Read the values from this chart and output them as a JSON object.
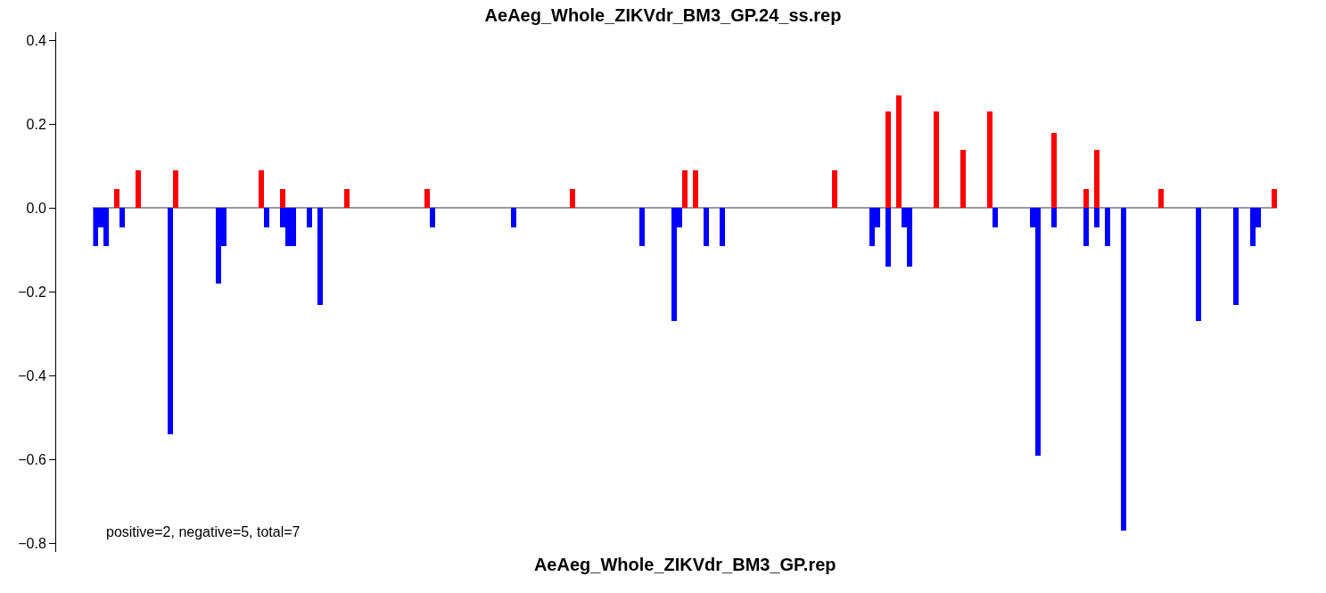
{
  "chart_data": {
    "type": "bar",
    "title": "AeAeg_Whole_ZIKVdr_BM3_GP.24_ss.rep",
    "xlabel": "AeAeg_Whole_ZIKVdr_BM3_GP.rep",
    "annotations": [
      "positive=2, negative=5, total=7"
    ],
    "categories": [
      null,
      null,
      null,
      null,
      null,
      null,
      null,
      null,
      null,
      null,
      null,
      null,
      null,
      null,
      null,
      null,
      null,
      null,
      null,
      null,
      null,
      null,
      null,
      null,
      null,
      null,
      null,
      null,
      null,
      null,
      null,
      null,
      null,
      null,
      null,
      null,
      null,
      null,
      null,
      null,
      null,
      null,
      null,
      null,
      null,
      null,
      null,
      null,
      null,
      null,
      null,
      null,
      null,
      null,
      null,
      null,
      null,
      null,
      null,
      null,
      null,
      null,
      null,
      null,
      null,
      null,
      null,
      null,
      null,
      null,
      null,
      null,
      null,
      null,
      null,
      null,
      null,
      null,
      null,
      null,
      null,
      null,
      null,
      null,
      null,
      null,
      null,
      null,
      null,
      null,
      null,
      null,
      null,
      null,
      null,
      null,
      null,
      null,
      null,
      null,
      null,
      null,
      null,
      null,
      null,
      null,
      null,
      null,
      null,
      null,
      null,
      null,
      null,
      null,
      null,
      null,
      null,
      null,
      null,
      null,
      null,
      null,
      null,
      null,
      null,
      null,
      null,
      null,
      null,
      null,
      null,
      null,
      null,
      null,
      null,
      null,
      null,
      null,
      null,
      null,
      null,
      null,
      null,
      null,
      null,
      null,
      null,
      null,
      null,
      null,
      null,
      null,
      null,
      null,
      null,
      null,
      null,
      null,
      null,
      null,
      null,
      null,
      null,
      null,
      null,
      null,
      null,
      null,
      null,
      null,
      null,
      null,
      null,
      null,
      null,
      null,
      null,
      null,
      null,
      null,
      null,
      null,
      null,
      null,
      null,
      null,
      null,
      null,
      null,
      null,
      null,
      null,
      null,
      null,
      null,
      null,
      null,
      null,
      null,
      null,
      null,
      null,
      null,
      null,
      null,
      null,
      null,
      null,
      null,
      null,
      null,
      null,
      null,
      null,
      null,
      null,
      null,
      null,
      null,
      null,
      null
    ],
    "series": [
      {
        "color": "#ff0000",
        "values": [
          null,
          null,
          null,
          null,
          0.045,
          null,
          null,
          null,
          0.09,
          null,
          null,
          null,
          null,
          null,
          null,
          0.09,
          null,
          null,
          null,
          null,
          null,
          null,
          null,
          null,
          null,
          null,
          null,
          null,
          null,
          null,
          null,
          0.09,
          null,
          null,
          null,
          0.045,
          null,
          null,
          null,
          null,
          null,
          null,
          null,
          null,
          null,
          null,
          null,
          0.045,
          null,
          null,
          null,
          null,
          null,
          null,
          null,
          null,
          null,
          null,
          null,
          null,
          null,
          null,
          0.045,
          null,
          null,
          null,
          null,
          null,
          null,
          null,
          null,
          null,
          null,
          null,
          null,
          null,
          null,
          null,
          null,
          null,
          null,
          null,
          null,
          null,
          null,
          null,
          null,
          null,
          null,
          0.045,
          null,
          null,
          null,
          null,
          null,
          null,
          null,
          null,
          null,
          null,
          null,
          null,
          null,
          null,
          null,
          null,
          null,
          null,
          null,
          null,
          0.09,
          null,
          0.09,
          null,
          null,
          null,
          null,
          null,
          null,
          null,
          null,
          null,
          null,
          null,
          null,
          null,
          null,
          null,
          null,
          null,
          null,
          null,
          null,
          null,
          null,
          null,
          null,
          null,
          0.09,
          null,
          null,
          null,
          null,
          null,
          null,
          null,
          null,
          null,
          0.23,
          null,
          0.27,
          null,
          null,
          null,
          null,
          null,
          null,
          0.23,
          null,
          null,
          null,
          null,
          0.14,
          null,
          null,
          null,
          null,
          0.23,
          null,
          null,
          null,
          null,
          null,
          null,
          null,
          null,
          null,
          null,
          null,
          0.18,
          null,
          null,
          null,
          null,
          null,
          0.045,
          null,
          0.14,
          null,
          null,
          null,
          null,
          null,
          null,
          null,
          null,
          null,
          null,
          null,
          0.045,
          null,
          null,
          null,
          null,
          null,
          null,
          null,
          null,
          null,
          null,
          null,
          null,
          null,
          null,
          null,
          null,
          null,
          null,
          null,
          null,
          0.045
        ]
      },
      {
        "color": "#0000ff",
        "values": [
          -0.09,
          -0.045,
          -0.09,
          null,
          null,
          -0.045,
          null,
          null,
          null,
          null,
          null,
          null,
          null,
          null,
          -0.54,
          null,
          null,
          null,
          null,
          null,
          null,
          null,
          null,
          -0.18,
          -0.09,
          null,
          null,
          null,
          null,
          null,
          null,
          null,
          -0.045,
          null,
          null,
          -0.045,
          -0.09,
          -0.09,
          null,
          null,
          -0.045,
          null,
          -0.23,
          null,
          null,
          null,
          null,
          null,
          null,
          null,
          null,
          null,
          null,
          null,
          null,
          null,
          null,
          null,
          null,
          null,
          null,
          null,
          null,
          -0.045,
          null,
          null,
          null,
          null,
          null,
          null,
          null,
          null,
          null,
          null,
          null,
          null,
          null,
          null,
          -0.045,
          null,
          null,
          null,
          null,
          null,
          null,
          null,
          null,
          null,
          null,
          null,
          null,
          null,
          null,
          null,
          null,
          null,
          null,
          null,
          null,
          null,
          null,
          null,
          -0.09,
          null,
          null,
          null,
          null,
          null,
          -0.27,
          -0.045,
          null,
          null,
          null,
          null,
          -0.09,
          null,
          null,
          -0.09,
          null,
          null,
          null,
          null,
          null,
          null,
          null,
          null,
          null,
          null,
          null,
          null,
          null,
          null,
          null,
          null,
          null,
          null,
          null,
          null,
          null,
          null,
          null,
          null,
          null,
          null,
          null,
          -0.09,
          -0.045,
          null,
          -0.14,
          null,
          null,
          -0.045,
          -0.14,
          null,
          null,
          null,
          null,
          null,
          null,
          null,
          null,
          null,
          null,
          null,
          null,
          null,
          null,
          null,
          -0.045,
          null,
          null,
          null,
          null,
          null,
          null,
          -0.045,
          -0.59,
          null,
          null,
          -0.045,
          null,
          null,
          null,
          null,
          null,
          -0.09,
          null,
          -0.045,
          null,
          -0.09,
          null,
          null,
          -0.77,
          null,
          null,
          null,
          null,
          null,
          null,
          null,
          null,
          null,
          null,
          null,
          null,
          null,
          -0.27,
          null,
          null,
          null,
          null,
          null,
          null,
          -0.23,
          null,
          null,
          -0.09,
          -0.045,
          null,
          null,
          null
        ]
      }
    ],
    "ylim": [
      -0.82,
      0.42
    ],
    "yticks": [
      0.4,
      0.2,
      {
        "value": 0,
        "label": "0.0"
      },
      {
        "value": -0.2,
        "label": "−0.2"
      },
      {
        "value": -0.4,
        "label": "−0.4"
      },
      {
        "value": -0.6,
        "label": "−0.6"
      },
      {
        "value": -0.8,
        "label": "−0.8"
      }
    ]
  }
}
